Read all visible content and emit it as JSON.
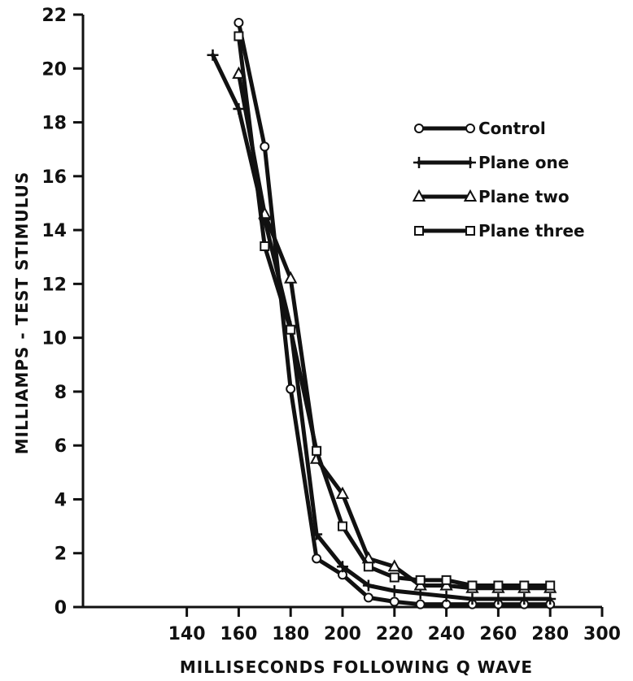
{
  "chart_data": {
    "type": "line",
    "xlabel": "MILLISECONDS FOLLOWING Q WAVE",
    "ylabel": "MILLIAMPS - TEST STIMULUS",
    "xlim": [
      100,
      300
    ],
    "ylim": [
      0,
      22
    ],
    "x_ticks": [
      140,
      160,
      180,
      200,
      220,
      240,
      260,
      280,
      300
    ],
    "y_ticks": [
      0,
      2,
      4,
      6,
      8,
      10,
      12,
      14,
      16,
      18,
      20,
      22
    ],
    "legend_position": "top-right",
    "series": [
      {
        "name": "Control",
        "marker": "circle",
        "x": [
          160,
          170,
          180,
          190,
          200,
          210,
          220,
          230,
          240,
          250,
          260,
          270,
          280
        ],
        "y": [
          21.7,
          17.1,
          8.1,
          1.8,
          1.2,
          0.35,
          0.2,
          0.1,
          0.1,
          0.1,
          0.1,
          0.1,
          0.1
        ]
      },
      {
        "name": "Plane one",
        "marker": "plus",
        "x": [
          150,
          160,
          170,
          180,
          190,
          200,
          210,
          220,
          230,
          240,
          250,
          260,
          270,
          280
        ],
        "y": [
          20.5,
          18.5,
          14.4,
          10.4,
          2.7,
          1.5,
          0.8,
          0.6,
          0.5,
          0.4,
          0.3,
          0.3,
          0.3,
          0.3
        ]
      },
      {
        "name": "Plane two",
        "marker": "triangle",
        "x": [
          160,
          170,
          180,
          190,
          200,
          210,
          220,
          230,
          240,
          250,
          260,
          270,
          280
        ],
        "y": [
          19.8,
          14.6,
          12.2,
          5.5,
          4.2,
          1.8,
          1.5,
          0.8,
          0.8,
          0.7,
          0.7,
          0.7,
          0.7
        ]
      },
      {
        "name": "Plane three",
        "marker": "square",
        "x": [
          160,
          170,
          180,
          190,
          200,
          210,
          220,
          230,
          240,
          250,
          260,
          270,
          280
        ],
        "y": [
          21.2,
          13.4,
          10.3,
          5.8,
          3.0,
          1.5,
          1.1,
          1.0,
          1.0,
          0.8,
          0.8,
          0.8,
          0.8
        ]
      }
    ]
  }
}
